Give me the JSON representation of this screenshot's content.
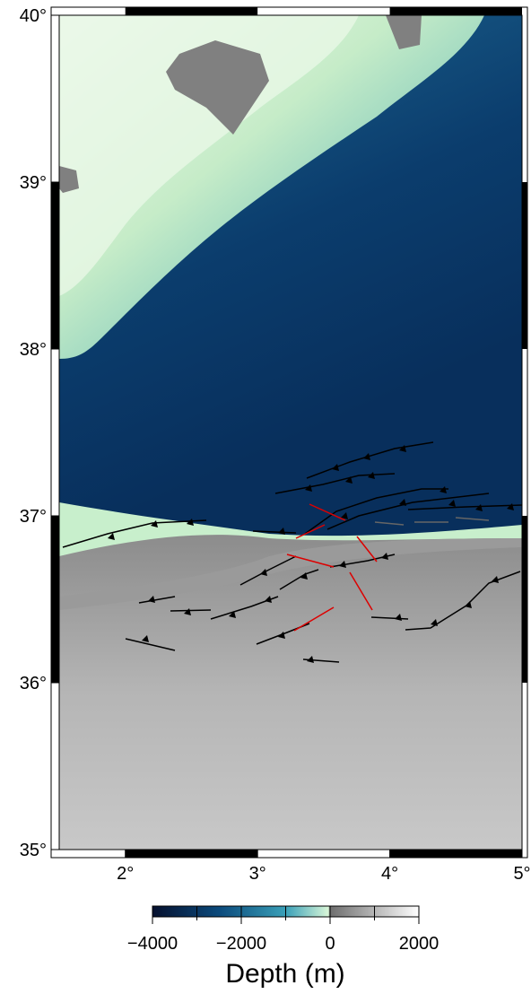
{
  "map": {
    "xlim": [
      1.5,
      5
    ],
    "ylim": [
      35,
      40
    ],
    "xticks": [
      {
        "value": 2,
        "label": "2°"
      },
      {
        "value": 3,
        "label": "3°"
      },
      {
        "value": 4,
        "label": "4°"
      },
      {
        "value": 5,
        "label": "5°"
      }
    ],
    "yticks": [
      {
        "value": 35,
        "label": "35°"
      },
      {
        "value": 36,
        "label": "36°"
      },
      {
        "value": 37,
        "label": "37°"
      },
      {
        "value": 38,
        "label": "38°"
      },
      {
        "value": 39,
        "label": "39°"
      },
      {
        "value": 40,
        "label": "40°"
      }
    ]
  },
  "colorbar": {
    "lim": [
      -4000,
      2000
    ],
    "ticks": [
      {
        "value": -4000,
        "label": "−4000"
      },
      {
        "value": -2000,
        "label": "−2000"
      },
      {
        "value": 0,
        "label": "0"
      },
      {
        "value": 2000,
        "label": "2000"
      }
    ],
    "label": "Depth (m)"
  }
}
